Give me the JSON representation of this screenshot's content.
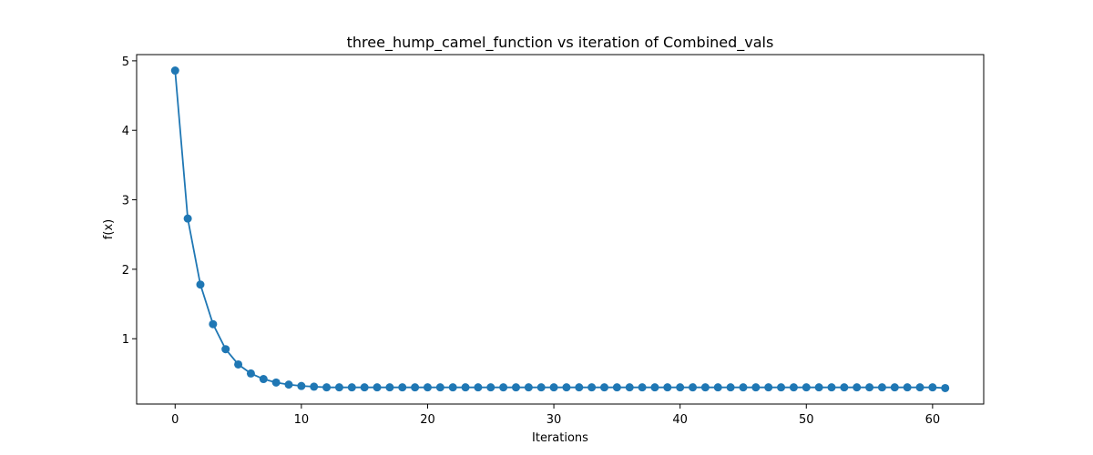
{
  "chart_data": {
    "type": "line",
    "title": "three_hump_camel_function vs iteration of Combined_vals",
    "xlabel": "Iterations",
    "ylabel": "f(x)",
    "xlim": [
      -3.05,
      64.05
    ],
    "ylim": [
      0.06,
      5.09
    ],
    "xticks": [
      0,
      10,
      20,
      30,
      40,
      50,
      60
    ],
    "yticks": [
      1,
      2,
      3,
      4,
      5
    ],
    "grid": false,
    "marker": "circle",
    "color": "#1f77b4",
    "x": [
      0,
      1,
      2,
      3,
      4,
      5,
      6,
      7,
      8,
      9,
      10,
      11,
      12,
      13,
      14,
      15,
      16,
      17,
      18,
      19,
      20,
      21,
      22,
      23,
      24,
      25,
      26,
      27,
      28,
      29,
      30,
      31,
      32,
      33,
      34,
      35,
      36,
      37,
      38,
      39,
      40,
      41,
      42,
      43,
      44,
      45,
      46,
      47,
      48,
      49,
      50,
      51,
      52,
      53,
      54,
      55,
      56,
      57,
      58,
      59,
      60,
      61
    ],
    "y": [
      4.86,
      2.73,
      1.78,
      1.21,
      0.85,
      0.63,
      0.5,
      0.42,
      0.37,
      0.34,
      0.32,
      0.31,
      0.3,
      0.3,
      0.3,
      0.3,
      0.3,
      0.3,
      0.3,
      0.3,
      0.3,
      0.3,
      0.3,
      0.3,
      0.3,
      0.3,
      0.3,
      0.3,
      0.3,
      0.3,
      0.3,
      0.3,
      0.3,
      0.3,
      0.3,
      0.3,
      0.3,
      0.3,
      0.3,
      0.3,
      0.3,
      0.3,
      0.3,
      0.3,
      0.3,
      0.3,
      0.3,
      0.3,
      0.3,
      0.3,
      0.3,
      0.3,
      0.3,
      0.3,
      0.3,
      0.3,
      0.3,
      0.3,
      0.3,
      0.3,
      0.3,
      0.29
    ]
  }
}
